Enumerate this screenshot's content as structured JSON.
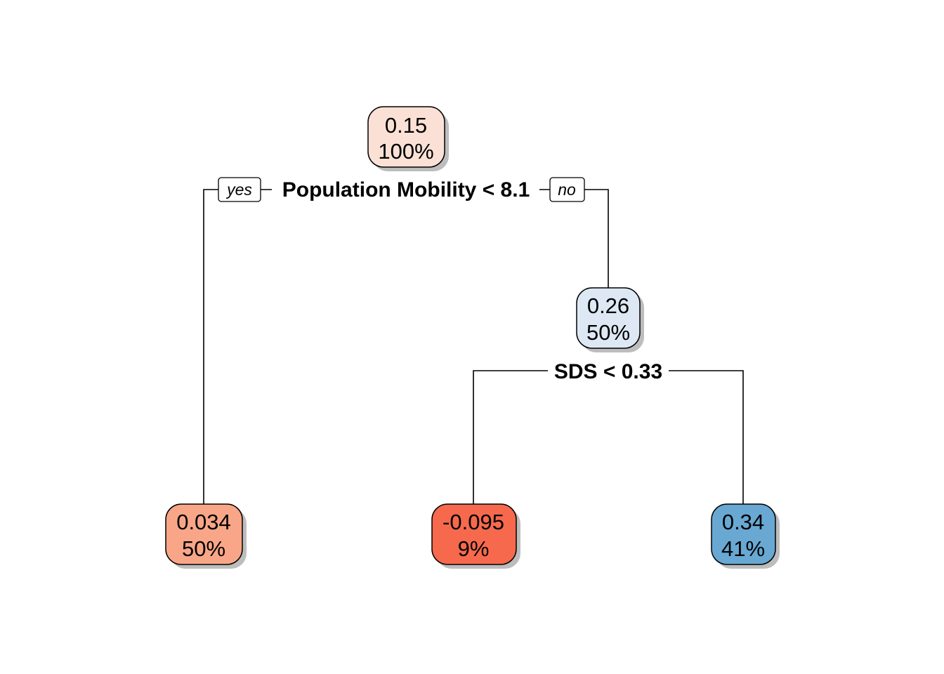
{
  "tree": {
    "branch_labels": {
      "left": "yes",
      "right": "no"
    },
    "nodes": [
      {
        "id": "root",
        "value": "0.15",
        "percent": "100%",
        "fill": "#fbe1d5"
      },
      {
        "id": "leaf1",
        "value": "0.034",
        "percent": "50%",
        "fill": "#f9a688"
      },
      {
        "id": "node2",
        "value": "0.26",
        "percent": "50%",
        "fill": "#dde8f4"
      },
      {
        "id": "leaf2",
        "value": "-0.095",
        "percent": "9%",
        "fill": "#f6694d"
      },
      {
        "id": "leaf3",
        "value": "0.34",
        "percent": "41%",
        "fill": "#68a8d3"
      }
    ],
    "splits": [
      {
        "id": "split-root",
        "label": "Population Mobility < 8.1"
      },
      {
        "id": "split-node2",
        "label": "SDS < 0.33"
      }
    ]
  }
}
